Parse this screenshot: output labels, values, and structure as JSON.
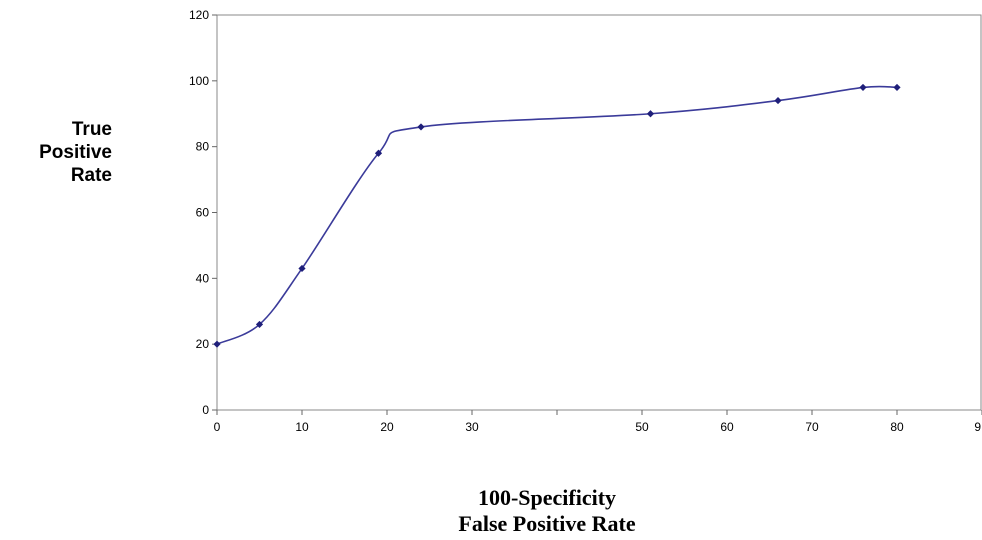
{
  "chart_data": {
    "type": "line",
    "title": "",
    "ylabel_lines": [
      "True",
      "Positive",
      "Rate"
    ],
    "xlabel_lines": [
      "100-Specificity",
      "False Positive Rate"
    ],
    "x_ticks": [
      "0",
      "10",
      "20",
      "30",
      "",
      "50",
      "60",
      "70",
      "80",
      "9"
    ],
    "y_ticks": [
      "0",
      "20",
      "40",
      "60",
      "80",
      "100",
      "120"
    ],
    "xlim": [
      0,
      90
    ],
    "ylim": [
      0,
      120
    ],
    "grid": false,
    "smooth": true,
    "series_color": "#3b3b9a",
    "marker_color": "#1f1f7a",
    "series": [
      {
        "x": [
          0,
          5,
          10,
          19,
          24,
          51,
          66,
          76,
          80
        ],
        "y": [
          20,
          26,
          43,
          78,
          86,
          90,
          94,
          98,
          98
        ]
      }
    ]
  }
}
